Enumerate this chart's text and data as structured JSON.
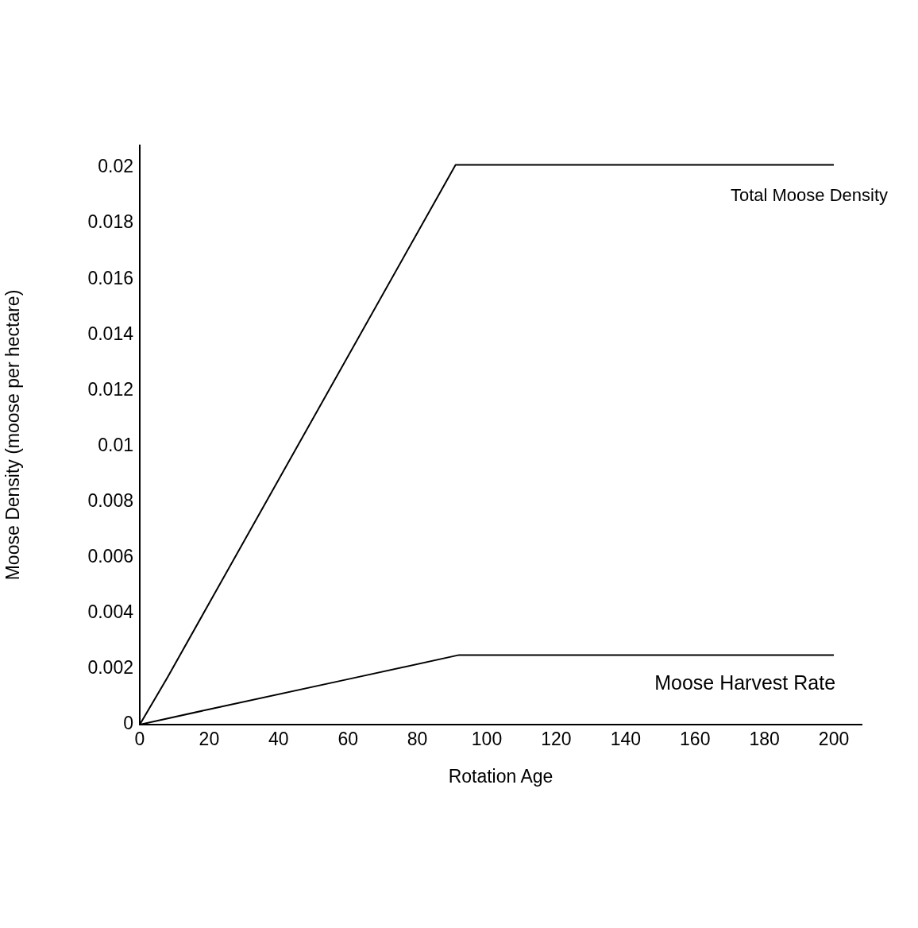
{
  "chart_data": {
    "type": "line",
    "xlabel": "Rotation Age",
    "ylabel": "Moose Density (moose per hectare)",
    "xlim": [
      0,
      208
    ],
    "xticks": [
      0,
      20,
      40,
      60,
      80,
      100,
      120,
      140,
      160,
      180,
      200
    ],
    "ylim": [
      0,
      0.0208
    ],
    "yticks": [
      0,
      0.002,
      0.004,
      0.006,
      0.008,
      0.01,
      0.012,
      0.014,
      0.016,
      0.018,
      0.02
    ],
    "series": [
      {
        "name": "Total Moose Density",
        "color": "#000000",
        "x": [
          0,
          8,
          91,
          200
        ],
        "values": [
          0,
          0.0017,
          0.0201,
          0.0201
        ]
      },
      {
        "name": "Moose Harvest Rate",
        "color": "#000000",
        "x": [
          0,
          20,
          60,
          92,
          200
        ],
        "values": [
          0,
          0.00055,
          0.00163,
          0.0025,
          0.0025
        ]
      }
    ],
    "legend": false,
    "grid": false,
    "marker": "none",
    "line_style": "solid"
  }
}
